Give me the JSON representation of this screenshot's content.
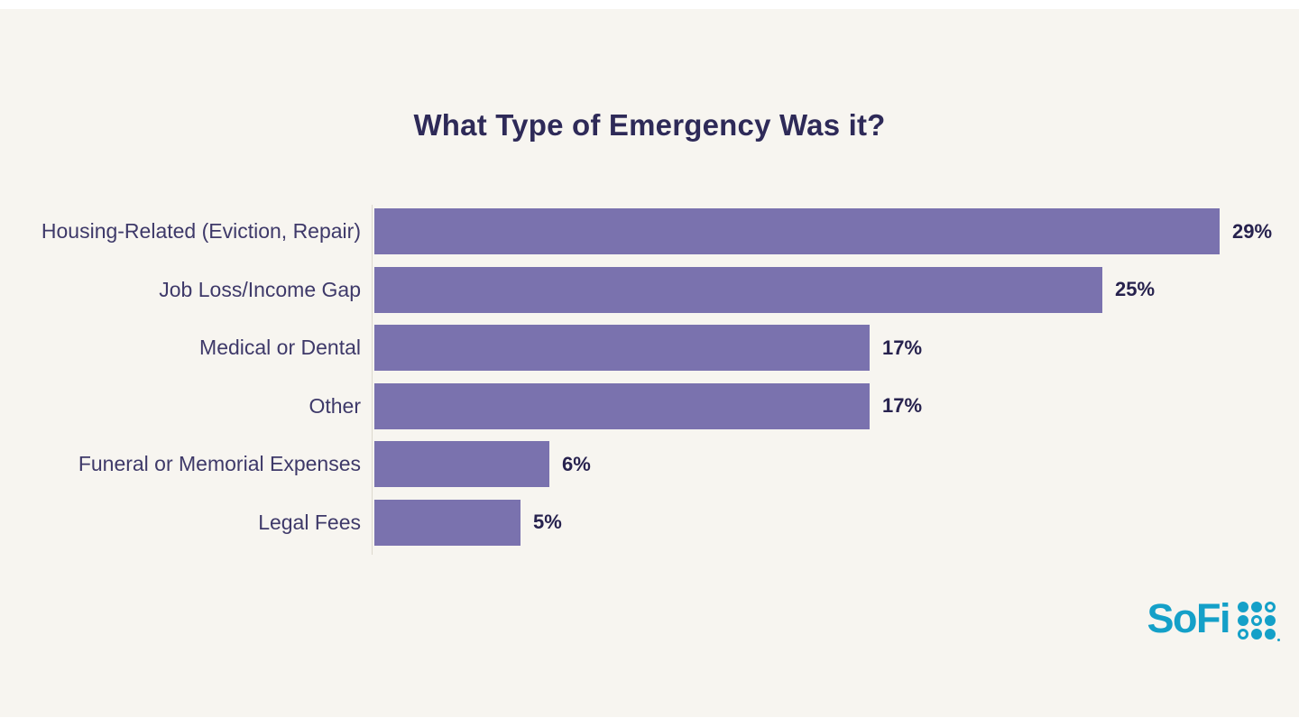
{
  "title": "What Type of Emergency Was it?",
  "chart_data": {
    "type": "bar",
    "orientation": "horizontal",
    "title": "What Type of Emergency Was it?",
    "xlabel": "",
    "ylabel": "",
    "categories": [
      "Housing-Related (Eviction, Repair)",
      "Job Loss/Income Gap",
      "Medical or Dental",
      "Other",
      "Funeral or Memorial Expenses",
      "Legal Fees"
    ],
    "values": [
      29,
      25,
      17,
      17,
      6,
      5
    ],
    "value_labels": [
      "29%",
      "25%",
      "17%",
      "17%",
      "6%",
      "5%"
    ],
    "xlim": [
      0,
      29
    ],
    "grid": false,
    "legend": false,
    "bar_color": "#7a72ae"
  },
  "branding": {
    "logo_text": "SoFi",
    "logo_color": "#14a0c8",
    "logo_dots_pattern": [
      [
        "dot",
        "dot",
        "ring"
      ],
      [
        "dot",
        "ring",
        "dot"
      ],
      [
        "ring",
        "dot",
        "dot"
      ]
    ]
  },
  "colors": {
    "page_background": "#ffffff",
    "panel_background": "#f7f5f0",
    "bar": "#7a72ae",
    "title_text": "#2e2a58",
    "category_text": "#3e3969",
    "value_text": "#27224e",
    "axis_line": "#ddd8cd",
    "logo": "#14a0c8"
  }
}
